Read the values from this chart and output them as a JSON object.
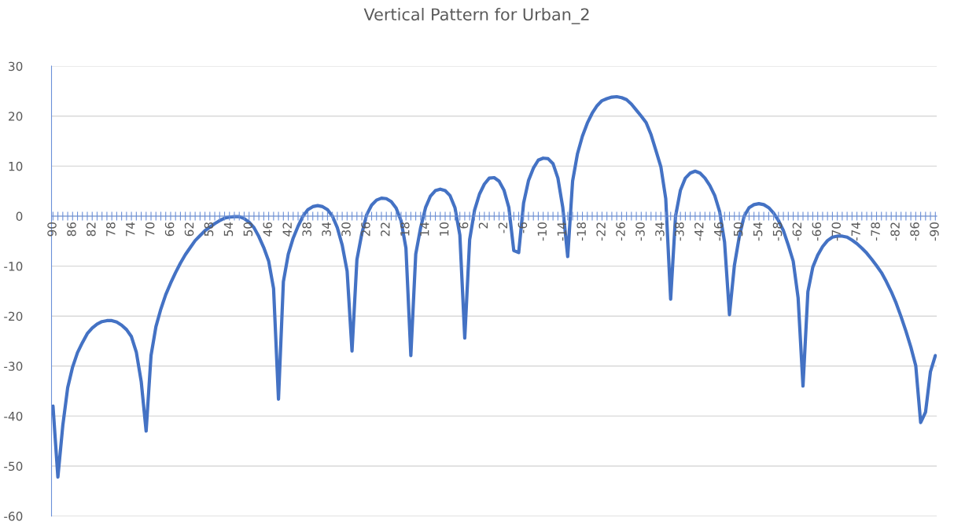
{
  "chart_data": {
    "type": "line",
    "title": "Vertical Pattern for Urban_2",
    "categories": [
      "90",
      null,
      null,
      null,
      "86",
      null,
      null,
      null,
      "82",
      null,
      null,
      null,
      "78",
      null,
      null,
      null,
      "74",
      null,
      null,
      null,
      "70",
      null,
      null,
      null,
      "66",
      null,
      null,
      null,
      "62",
      null,
      null,
      null,
      "58",
      null,
      null,
      null,
      "54",
      null,
      null,
      null,
      "50",
      null,
      null,
      null,
      "46",
      null,
      null,
      null,
      "42",
      null,
      null,
      null,
      "38",
      null,
      null,
      null,
      "34",
      null,
      null,
      null,
      "30",
      null,
      null,
      null,
      "26",
      null,
      null,
      null,
      "22",
      null,
      null,
      null,
      "18",
      null,
      null,
      null,
      "14",
      null,
      null,
      null,
      "10",
      null,
      null,
      null,
      "6",
      null,
      null,
      null,
      "2",
      null,
      null,
      null,
      "-2",
      null,
      null,
      null,
      "-6",
      null,
      null,
      null,
      "-10",
      null,
      null,
      null,
      "-14",
      null,
      null,
      null,
      "-18",
      null,
      null,
      null,
      "-22",
      null,
      null,
      null,
      "-26",
      null,
      null,
      null,
      "-30",
      null,
      null,
      null,
      "-34",
      null,
      null,
      null,
      "-38",
      null,
      null,
      null,
      "-42",
      null,
      null,
      null,
      "-46",
      null,
      null,
      null,
      "-50",
      null,
      null,
      null,
      "-54",
      null,
      null,
      null,
      "-58",
      null,
      null,
      null,
      "-62",
      null,
      null,
      null,
      "-66",
      null,
      null,
      null,
      "-70",
      null,
      null,
      null,
      "-74",
      null,
      null,
      null,
      "-78",
      null,
      null,
      null,
      "-82",
      null,
      null,
      null,
      "-86",
      null,
      null,
      null,
      "-90"
    ],
    "series": [
      {
        "color": "#4472c4",
        "values": [
          -38.0,
          -52.2,
          -41.9,
          -34.3,
          -30.2,
          -27.3,
          -25.3,
          -23.5,
          -22.4,
          -21.6,
          -21.1,
          -20.9,
          -20.9,
          -21.2,
          -21.8,
          -22.7,
          -24.1,
          -27.2,
          -33.1,
          -43.0,
          -27.9,
          -22.1,
          -18.6,
          -15.7,
          -13.4,
          -11.3,
          -9.4,
          -7.7,
          -6.3,
          -4.9,
          -3.9,
          -2.9,
          -2.2,
          -1.5,
          -0.9,
          -0.4,
          -0.2,
          -0.1,
          -0.1,
          -0.5,
          -1.2,
          -2.3,
          -4.1,
          -6.3,
          -9.0,
          -14.5,
          -36.6,
          -13.1,
          -7.6,
          -4.4,
          -2.0,
          0.0,
          1.3,
          1.9,
          2.1,
          1.9,
          1.3,
          0.0,
          -2.3,
          -5.8,
          -11.0,
          -27.0,
          -8.7,
          -3.5,
          0.3,
          2.2,
          3.2,
          3.6,
          3.5,
          2.9,
          1.6,
          -0.9,
          -6.4,
          -27.9,
          -7.6,
          -2.3,
          1.7,
          4.0,
          5.1,
          5.4,
          5.1,
          4.1,
          1.7,
          -3.8,
          -24.4,
          -4.7,
          1.2,
          4.4,
          6.4,
          7.6,
          7.7,
          7.0,
          5.2,
          1.7,
          -6.9,
          -7.3,
          2.6,
          7.1,
          9.6,
          11.2,
          11.6,
          11.5,
          10.5,
          7.6,
          1.7,
          -8.1,
          7.0,
          12.5,
          16.0,
          18.6,
          20.6,
          22.1,
          23.1,
          23.5,
          23.8,
          23.9,
          23.7,
          23.3,
          22.4,
          21.2,
          20.0,
          18.7,
          16.3,
          13.1,
          9.9,
          3.5,
          -16.6,
          0.0,
          5.2,
          7.6,
          8.6,
          9.0,
          8.6,
          7.6,
          6.1,
          4.1,
          0.9,
          -5.2,
          -19.7,
          -9.9,
          -4.1,
          0.0,
          1.7,
          2.3,
          2.5,
          2.3,
          1.7,
          0.6,
          -0.9,
          -2.9,
          -5.8,
          -9.0,
          -16.3,
          -34.0,
          -15.1,
          -10.2,
          -7.8,
          -6.1,
          -4.9,
          -4.2,
          -4.0,
          -4.0,
          -4.2,
          -4.8,
          -5.5,
          -6.4,
          -7.4,
          -8.6,
          -9.9,
          -11.3,
          -13.1,
          -15.1,
          -17.4,
          -20.1,
          -23.0,
          -26.2,
          -29.9,
          -41.3,
          -39.2,
          -31.1,
          -27.9
        ]
      }
    ],
    "ylim": [
      -60,
      30
    ],
    "yticks": [
      -60,
      -50,
      -40,
      -30,
      -20,
      -10,
      0,
      10,
      20,
      30
    ],
    "grid": "y",
    "legend": false
  }
}
